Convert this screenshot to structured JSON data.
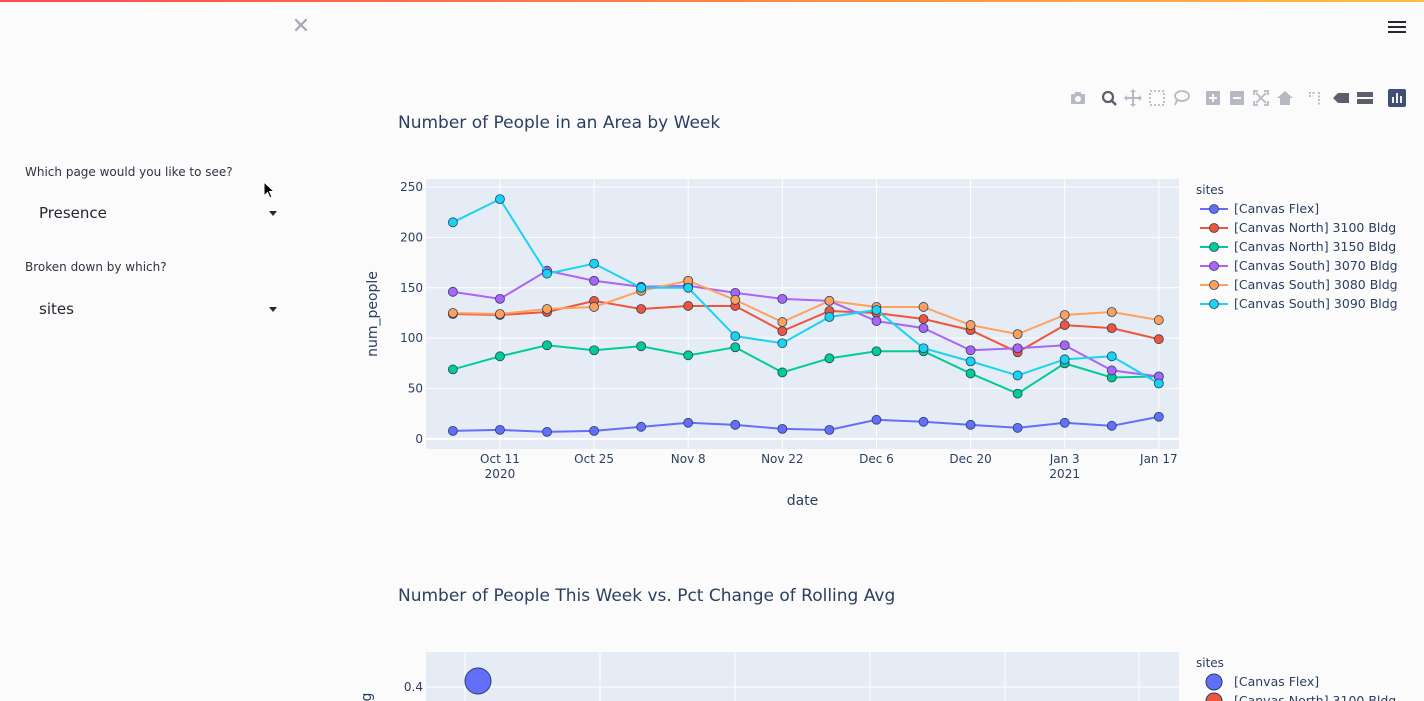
{
  "sidebar": {
    "close_icon": "close-icon",
    "page_question": "Which page would you like to see?",
    "page_selected": "Presence",
    "breakdown_question": "Broken down by which?",
    "breakdown_selected": "sites"
  },
  "header": {
    "menu_icon": "hamburger-menu-icon"
  },
  "modebar": {
    "icons": [
      "camera-icon",
      "zoom-icon",
      "pan-icon",
      "box-select-icon",
      "lasso-select-icon",
      "zoom-in-icon",
      "zoom-out-icon",
      "autoscale-icon",
      "reset-axes-icon",
      "spike-lines-icon",
      "hover-closest-icon",
      "hover-compare-icon",
      "plotly-logo-icon"
    ]
  },
  "colors": {
    "Canvas Flex": "#636efa",
    "North 3100": "#ef553b",
    "North 3150": "#00cc96",
    "South 3070": "#ab63fa",
    "South 3080": "#ffa15a",
    "South 3090": "#19d3f3",
    "plot_bg": "#e5ecf6",
    "title": "#2a3f5f"
  },
  "chart_data": [
    {
      "type": "line",
      "title": "Number of People in an Area by Week",
      "xlabel": "date",
      "ylabel": "num_people",
      "ylim": [
        -10,
        258
      ],
      "xlim": [
        "2020-09-30",
        "2021-01-20"
      ],
      "x_ticks": [
        {
          "date": "2020-10-11",
          "label": "Oct 11",
          "sublabel": "2020"
        },
        {
          "date": "2020-10-25",
          "label": "Oct 25",
          "sublabel": ""
        },
        {
          "date": "2020-11-08",
          "label": "Nov 8",
          "sublabel": ""
        },
        {
          "date": "2020-11-22",
          "label": "Nov 22",
          "sublabel": ""
        },
        {
          "date": "2020-12-06",
          "label": "Dec 6",
          "sublabel": ""
        },
        {
          "date": "2020-12-20",
          "label": "Dec 20",
          "sublabel": ""
        },
        {
          "date": "2021-01-03",
          "label": "Jan 3",
          "sublabel": "2021"
        },
        {
          "date": "2021-01-17",
          "label": "Jan 17",
          "sublabel": ""
        }
      ],
      "y_ticks": [
        0,
        50,
        100,
        150,
        200,
        250
      ],
      "legend_title": "sites",
      "legend_position": "right",
      "x": [
        "2020-10-04",
        "2020-10-11",
        "2020-10-18",
        "2020-10-25",
        "2020-11-01",
        "2020-11-08",
        "2020-11-15",
        "2020-11-22",
        "2020-11-29",
        "2020-12-06",
        "2020-12-13",
        "2020-12-20",
        "2020-12-27",
        "2021-01-03",
        "2021-01-10",
        "2021-01-17"
      ],
      "series": [
        {
          "name": "[Canvas Flex]",
          "color": "#636efa",
          "values": [
            8,
            9,
            7,
            8,
            12,
            16,
            14,
            10,
            9,
            19,
            17,
            14,
            11,
            16,
            13,
            22
          ]
        },
        {
          "name": "[Canvas North] 3100 Bldg",
          "color": "#ef553b",
          "values": [
            124,
            123,
            126,
            137,
            129,
            132,
            132,
            107,
            127,
            125,
            119,
            108,
            86,
            113,
            110,
            99
          ]
        },
        {
          "name": "[Canvas North] 3150 Bldg",
          "color": "#00cc96",
          "values": [
            69,
            82,
            93,
            88,
            92,
            83,
            91,
            66,
            80,
            87,
            87,
            65,
            45,
            75,
            61,
            62
          ]
        },
        {
          "name": "[Canvas South] 3070 Bldg",
          "color": "#ab63fa",
          "values": [
            146,
            139,
            167,
            157,
            151,
            152,
            145,
            139,
            137,
            117,
            110,
            88,
            90,
            93,
            68,
            62
          ]
        },
        {
          "name": "[Canvas South] 3080 Bldg",
          "color": "#ffa15a",
          "values": [
            125,
            124,
            129,
            131,
            147,
            157,
            138,
            116,
            137,
            131,
            131,
            113,
            104,
            123,
            126,
            118
          ]
        },
        {
          "name": "[Canvas South] 3090 Bldg",
          "color": "#19d3f3",
          "values": [
            215,
            238,
            164,
            174,
            150,
            150,
            102,
            95,
            121,
            128,
            90,
            77,
            63,
            79,
            82,
            55
          ]
        }
      ]
    },
    {
      "type": "scatter",
      "title": "Number of People This Week vs. Pct Change of Rolling Avg",
      "ylabel": "g",
      "y_ticks_visible": [
        0.4
      ],
      "legend_title": "sites",
      "legend_entries": [
        "[Canvas Flex]",
        "[Canvas North] 3100 Bldg"
      ],
      "points": [
        {
          "series": "[Canvas Flex]",
          "y": 0.42
        }
      ]
    }
  ]
}
